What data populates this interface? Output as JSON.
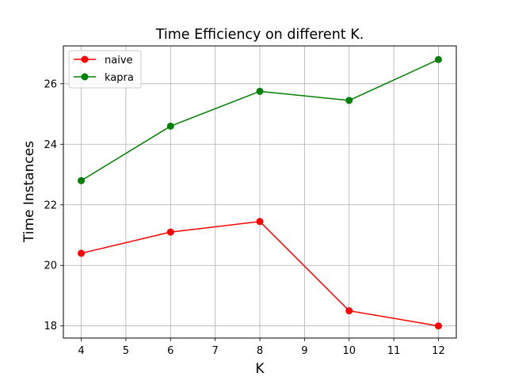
{
  "chart_data": {
    "type": "line",
    "title": "Time Efficiency on different K.",
    "xlabel": "K",
    "ylabel": "Time Instances",
    "x": [
      4,
      6,
      8,
      10,
      12
    ],
    "xlim": [
      3.6,
      12.4
    ],
    "ylim": [
      17.6,
      27.25
    ],
    "xticks": [
      "4",
      "5",
      "6",
      "7",
      "8",
      "9",
      "10",
      "11",
      "12"
    ],
    "yticks": [
      "18",
      "20",
      "22",
      "24",
      "26"
    ],
    "grid": true,
    "legend_position": "upper-left",
    "series": [
      {
        "name": "naive",
        "color": "#ff0000",
        "values": [
          20.4,
          21.1,
          21.45,
          18.5,
          18.0
        ]
      },
      {
        "name": "kapra",
        "color": "#008000",
        "values": [
          22.8,
          24.6,
          25.75,
          25.45,
          26.8
        ]
      }
    ]
  }
}
